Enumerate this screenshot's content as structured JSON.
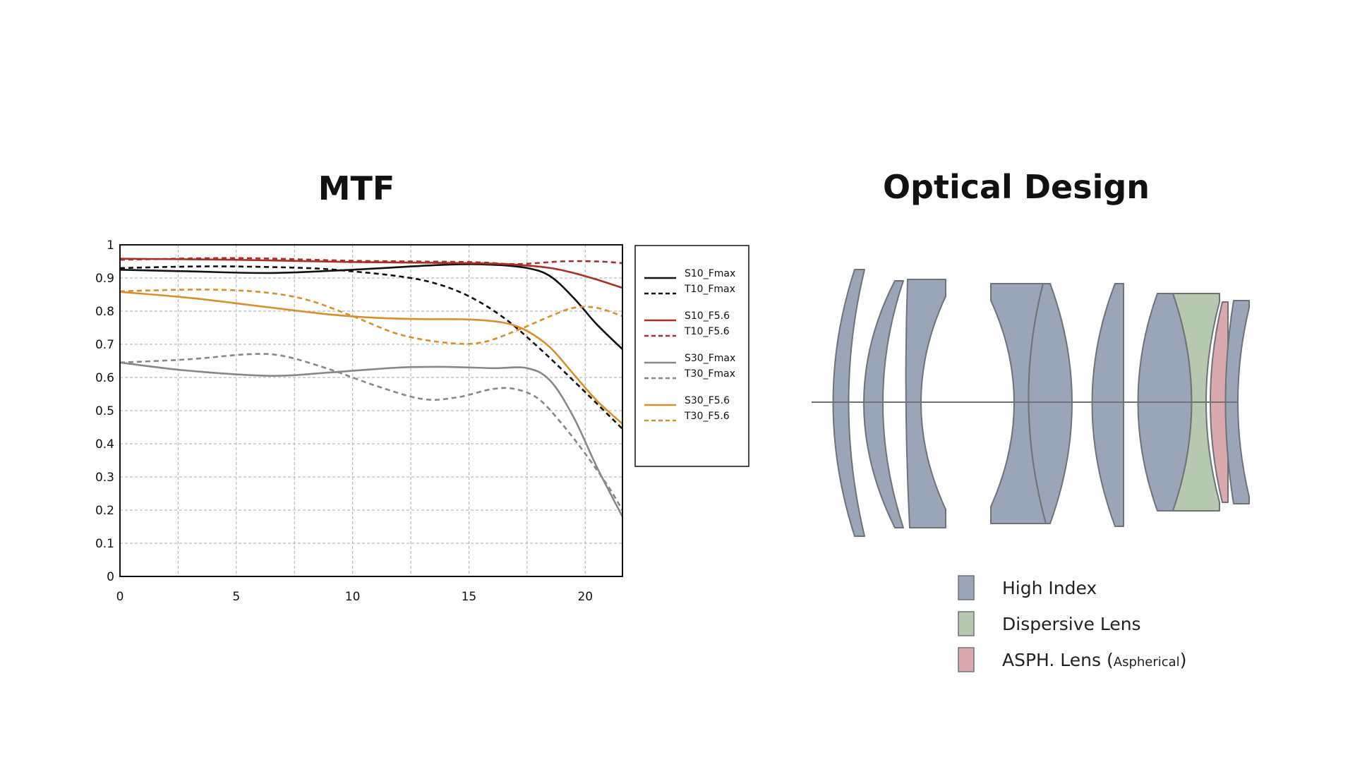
{
  "titles": {
    "mtf": "MTF",
    "optical": "Optical Design"
  },
  "chart_data": {
    "type": "line",
    "title": "MTF",
    "xlabel": "",
    "ylabel": "",
    "xlim": [
      0,
      21.6
    ],
    "ylim": [
      0,
      1
    ],
    "xticks": [
      0,
      5,
      10,
      15,
      20
    ],
    "yticks": [
      0,
      0.1,
      0.2,
      0.3,
      0.4,
      0.5,
      0.6,
      0.7,
      0.8,
      0.9,
      1
    ],
    "ytick_labels": [
      "0",
      "0.1",
      "0.2",
      "0.3",
      "0.4",
      "0.5",
      "0.6",
      "0.7",
      "0.8",
      "0.9",
      "1"
    ],
    "grid": true,
    "legend": "right",
    "series": [
      {
        "name": "S10_Fmax",
        "color": "#111111",
        "dash": "solid",
        "x": [
          0,
          3,
          6.5,
          10,
          14,
          16,
          17.5,
          18.5,
          19.5,
          20.5,
          21.6
        ],
        "y": [
          0.925,
          0.92,
          0.915,
          0.925,
          0.94,
          0.94,
          0.93,
          0.905,
          0.84,
          0.76,
          0.685
        ]
      },
      {
        "name": "T10_Fmax",
        "color": "#111111",
        "dash": "dashed",
        "x": [
          0,
          4,
          8,
          10,
          12,
          13.5,
          15,
          16.5,
          18,
          19.5,
          21.6
        ],
        "y": [
          0.93,
          0.935,
          0.93,
          0.92,
          0.905,
          0.885,
          0.845,
          0.78,
          0.69,
          0.59,
          0.445
        ]
      },
      {
        "name": "S10_F5.6",
        "color": "#aa2e26",
        "dash": "solid",
        "x": [
          0,
          5,
          10,
          15,
          17,
          18.5,
          19.5,
          20.5,
          21.6
        ],
        "y": [
          0.958,
          0.955,
          0.948,
          0.945,
          0.94,
          0.93,
          0.915,
          0.895,
          0.87
        ]
      },
      {
        "name": "T10_F5.6",
        "color": "#aa2e26",
        "dash": "dashed",
        "x": [
          0,
          5,
          10,
          15,
          17,
          19,
          20.5,
          21.6
        ],
        "y": [
          0.955,
          0.96,
          0.952,
          0.948,
          0.942,
          0.95,
          0.95,
          0.945
        ]
      },
      {
        "name": "S30_Fmax",
        "color": "#888888",
        "dash": "solid",
        "x": [
          0,
          3,
          6.5,
          9,
          12,
          14,
          16,
          17.5,
          18.5,
          19.5,
          20.5,
          21.6
        ],
        "y": [
          0.645,
          0.62,
          0.605,
          0.615,
          0.63,
          0.632,
          0.628,
          0.628,
          0.59,
          0.48,
          0.33,
          0.18
        ]
      },
      {
        "name": "T30_Fmax",
        "color": "#888888",
        "dash": "dashed",
        "x": [
          0,
          3,
          5.5,
          7,
          9,
          11,
          13,
          14.5,
          16,
          17,
          18,
          19,
          20,
          21,
          21.6
        ],
        "y": [
          0.645,
          0.655,
          0.67,
          0.665,
          0.625,
          0.575,
          0.535,
          0.54,
          0.565,
          0.565,
          0.535,
          0.46,
          0.37,
          0.27,
          0.2
        ]
      },
      {
        "name": "S30_F5.6",
        "color": "#d88f2a",
        "dash": "solid",
        "x": [
          0,
          3,
          6,
          9,
          11,
          13,
          15,
          16.5,
          17.5,
          18.5,
          19.5,
          20.5,
          21.6
        ],
        "y": [
          0.858,
          0.84,
          0.815,
          0.79,
          0.78,
          0.776,
          0.775,
          0.765,
          0.74,
          0.69,
          0.61,
          0.53,
          0.46
        ]
      },
      {
        "name": "T30_F5.6",
        "color": "#d88f2a",
        "dash": "dashed",
        "x": [
          0,
          3.5,
          6,
          8,
          10,
          12,
          14,
          15.5,
          17,
          18.5,
          19.5,
          20.5,
          21.6
        ],
        "y": [
          0.86,
          0.865,
          0.858,
          0.835,
          0.785,
          0.73,
          0.705,
          0.705,
          0.74,
          0.785,
          0.81,
          0.81,
          0.785
        ]
      }
    ]
  },
  "optical_legend": {
    "items": [
      {
        "label": "High Index",
        "color": "#9aa6b8"
      },
      {
        "label": "Dispersive Lens",
        "color": "#b7c8b0"
      },
      {
        "label": "ASPH. Lens (",
        "small": "Aspherical",
        "close": ")",
        "color": "#d9a9ae"
      }
    ]
  }
}
